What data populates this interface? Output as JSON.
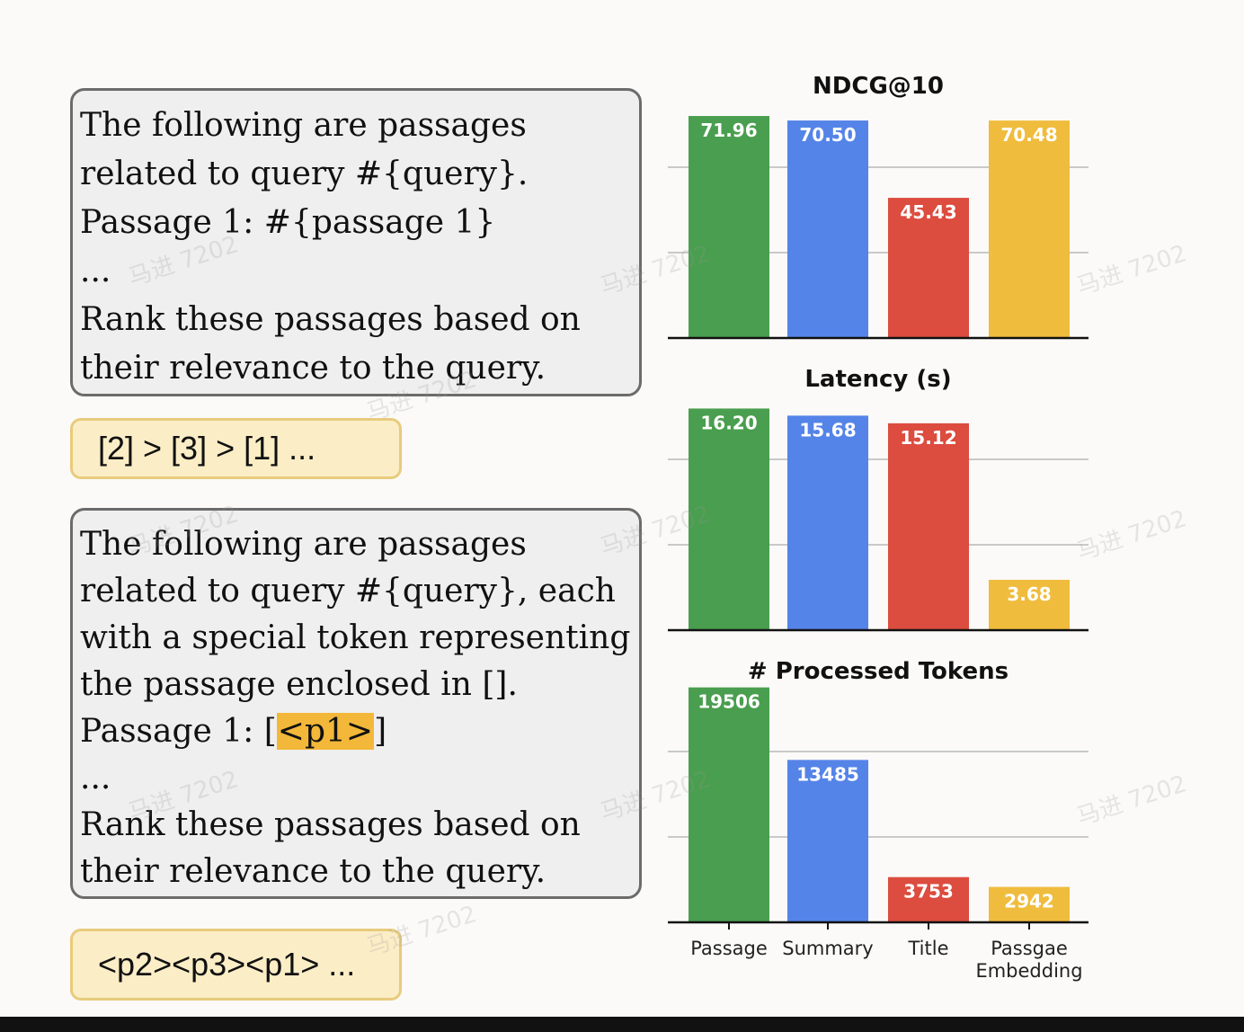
{
  "prompts": {
    "standard": {
      "lines": [
        "The following are passages",
        "related to query #{query}.",
        "Passage 1: #{passage 1}",
        "...",
        "Rank these passages based on",
        "their relevance to the query."
      ],
      "output": "[2] > [3] > [1] ..."
    },
    "token": {
      "lines": [
        "The following are passages",
        "related to query #{query}, each",
        "with a special token representing",
        "the passage enclosed in [].",
        "Passage 1: [",
        "...",
        "Rank these passages based on",
        "their relevance to the query."
      ],
      "highlight_token": "<p1>",
      "highlight_suffix": "]",
      "highlight_color": "#f3b83a",
      "output": "<p2><p3><p1> ..."
    }
  },
  "watermark_text": "马进 7202",
  "colors": {
    "Passage": "#4a9e4f",
    "Summary": "#5584e8",
    "Title": "#dc4c3f",
    "Passgae Embedding": "#f0bc3d"
  },
  "chart_data": [
    {
      "type": "bar",
      "title": "NDCG@10",
      "categories": [
        "Passage",
        "Summary",
        "Title",
        "Passgae Embedding"
      ],
      "values": [
        71.96,
        70.5,
        45.43,
        70.48
      ],
      "value_labels": [
        "71.96",
        "70.50",
        "45.43",
        "70.48"
      ],
      "ylim": [
        0,
        81
      ],
      "grid": true
    },
    {
      "type": "bar",
      "title": "Latency (s)",
      "categories": [
        "Passage",
        "Summary",
        "Title",
        "Passgae Embedding"
      ],
      "values": [
        16.2,
        15.68,
        15.12,
        3.68
      ],
      "value_labels": [
        "16.20",
        "15.68",
        "15.12",
        "3.68"
      ],
      "ylim": [
        0,
        18.2
      ],
      "grid": true
    },
    {
      "type": "bar",
      "title": "# Processed Tokens",
      "categories": [
        "Passage",
        "Summary",
        "Title",
        "Passgae Embedding"
      ],
      "tick_labels": [
        [
          "Passage"
        ],
        [
          "Summary"
        ],
        [
          "Title"
        ],
        [
          "Passgae",
          "Embedding"
        ]
      ],
      "values": [
        19506,
        13485,
        3753,
        2942
      ],
      "value_labels": [
        "19506",
        "13485",
        "3753",
        "2942"
      ],
      "ylim": [
        0,
        20600
      ],
      "grid": true
    }
  ]
}
